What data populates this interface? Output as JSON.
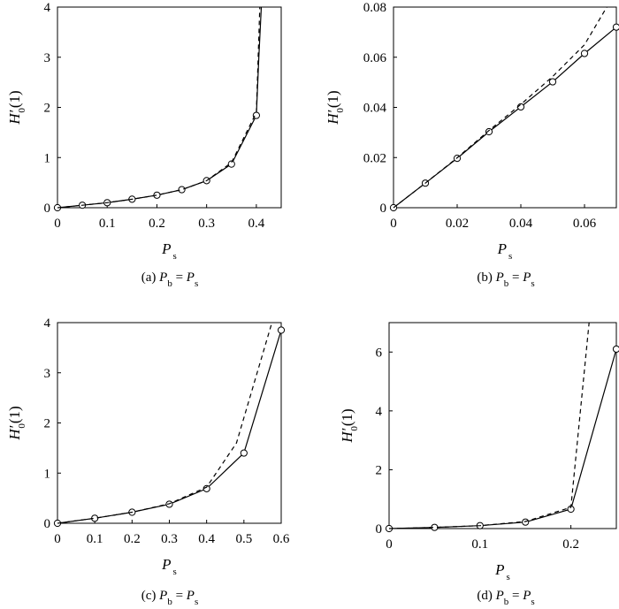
{
  "chart_data": [
    {
      "type": "line",
      "caption": {
        "prefix": "(a) ",
        "lhs_var": "P",
        "lhs_sub": "b",
        "eq": " = ",
        "rhs_var": "P",
        "rhs_sub": "s"
      },
      "xlabel": {
        "var": "P",
        "sub": "s"
      },
      "ylabel": {
        "var": "H",
        "sub": "0",
        "tail": "(1)"
      },
      "xlim": [
        0,
        0.45
      ],
      "ylim": [
        0,
        4
      ],
      "xticks": [
        0,
        0.1,
        0.2,
        0.3,
        0.4
      ],
      "xtick_labels": [
        "0",
        "0.1",
        "0.2",
        "0.3",
        "0.4"
      ],
      "yticks": [
        0,
        1,
        2,
        3,
        4
      ],
      "ytick_labels": [
        "0",
        "1",
        "2",
        "3",
        "4"
      ],
      "series": [
        {
          "style": "solid",
          "markers": true,
          "x": [
            0,
            0.05,
            0.1,
            0.15,
            0.2,
            0.25,
            0.3,
            0.35,
            0.4
          ],
          "y": [
            0,
            0.05,
            0.1,
            0.17,
            0.25,
            0.36,
            0.54,
            0.87,
            1.84
          ],
          "markers_x": [
            0,
            0.05,
            0.1,
            0.15,
            0.2,
            0.25,
            0.3,
            0.35,
            0.4
          ],
          "markers_y": [
            0,
            0.05,
            0.1,
            0.17,
            0.25,
            0.36,
            0.54,
            0.87,
            1.84
          ],
          "tail_x": [
            0.4,
            0.405,
            0.41
          ],
          "tail_y": [
            1.84,
            3.0,
            4.0
          ]
        },
        {
          "style": "dashed",
          "markers": false,
          "x": [
            0,
            0.05,
            0.1,
            0.15,
            0.2,
            0.25,
            0.3,
            0.35,
            0.4,
            0.407
          ],
          "y": [
            0,
            0.05,
            0.1,
            0.17,
            0.25,
            0.36,
            0.54,
            0.9,
            1.9,
            4.0
          ]
        }
      ]
    },
    {
      "type": "line",
      "caption": {
        "prefix": "(b) ",
        "lhs_var": "P",
        "lhs_sub": "b",
        "eq": " = ",
        "rhs_var": "P",
        "rhs_sub": "s"
      },
      "xlabel": {
        "var": "P",
        "sub": "s"
      },
      "ylabel": {
        "var": "H",
        "sub": "0",
        "tail": "(1)"
      },
      "xlim": [
        0,
        0.07
      ],
      "ylim": [
        0,
        0.08
      ],
      "xticks": [
        0,
        0.02,
        0.04,
        0.06
      ],
      "xtick_labels": [
        "0",
        "0.02",
        "0.04",
        "0.06"
      ],
      "yticks": [
        0,
        0.02,
        0.04,
        0.06,
        0.08
      ],
      "ytick_labels": [
        "0",
        "0.02",
        "0.04",
        "0.06",
        "0.08"
      ],
      "series": [
        {
          "style": "solid",
          "markers": true,
          "x": [
            0,
            0.01,
            0.02,
            0.03,
            0.04,
            0.05,
            0.06,
            0.07
          ],
          "y": [
            0,
            0.0098,
            0.0197,
            0.0303,
            0.0402,
            0.0502,
            0.0615,
            0.072
          ]
        },
        {
          "style": "dashed",
          "markers": false,
          "x": [
            0,
            0.01,
            0.02,
            0.03,
            0.04,
            0.05,
            0.06,
            0.067
          ],
          "y": [
            0,
            0.0098,
            0.0199,
            0.0308,
            0.0412,
            0.0523,
            0.065,
            0.08
          ]
        }
      ]
    },
    {
      "type": "line",
      "caption": {
        "prefix": "(c) ",
        "lhs_var": "P",
        "lhs_sub": "b",
        "eq": " = ",
        "rhs_var": "P",
        "rhs_sub": "s"
      },
      "xlabel": {
        "var": "P",
        "sub": "s"
      },
      "ylabel": {
        "var": "H",
        "sub": "0",
        "tail": "(1)"
      },
      "xlim": [
        0,
        0.6
      ],
      "ylim": [
        0,
        4
      ],
      "xticks": [
        0,
        0.1,
        0.2,
        0.3,
        0.4,
        0.5,
        0.6
      ],
      "xtick_labels": [
        "0",
        "0.1",
        "0.2",
        "0.3",
        "0.4",
        "0.5",
        "0.6"
      ],
      "yticks": [
        0,
        1,
        2,
        3,
        4
      ],
      "ytick_labels": [
        "0",
        "1",
        "2",
        "3",
        "4"
      ],
      "series": [
        {
          "style": "solid",
          "markers": true,
          "x": [
            0,
            0.1,
            0.2,
            0.3,
            0.4,
            0.5,
            0.6
          ],
          "y": [
            0,
            0.1,
            0.22,
            0.38,
            0.69,
            1.4,
            3.85
          ]
        },
        {
          "style": "dashed",
          "markers": false,
          "x": [
            0,
            0.1,
            0.2,
            0.3,
            0.4,
            0.48,
            0.575
          ],
          "y": [
            0,
            0.1,
            0.22,
            0.39,
            0.72,
            1.6,
            4.0
          ]
        }
      ]
    },
    {
      "type": "line",
      "caption": {
        "prefix": "(d) ",
        "lhs_var": "P",
        "lhs_sub": "b",
        "eq": " = ",
        "rhs_var": "P",
        "rhs_sub": "s"
      },
      "xlabel": {
        "var": "P",
        "sub": "s"
      },
      "ylabel": {
        "var": "H",
        "sub": "0",
        "tail": "(1)"
      },
      "xlim": [
        0,
        0.25
      ],
      "ylim": [
        0,
        7
      ],
      "xticks": [
        0,
        0.1,
        0.2
      ],
      "xtick_labels": [
        "0",
        "0.1",
        "0.2"
      ],
      "yticks": [
        0,
        2,
        4,
        6
      ],
      "ytick_labels": [
        "0",
        "2",
        "4",
        "6"
      ],
      "series": [
        {
          "style": "solid",
          "markers": true,
          "x": [
            0,
            0.05,
            0.1,
            0.15,
            0.2,
            0.25
          ],
          "y": [
            0,
            0.04,
            0.1,
            0.22,
            0.66,
            6.1
          ]
        },
        {
          "style": "dashed",
          "markers": false,
          "x": [
            0,
            0.05,
            0.1,
            0.15,
            0.2,
            0.22
          ],
          "y": [
            0,
            0.04,
            0.1,
            0.24,
            0.72,
            7.0
          ]
        }
      ]
    }
  ]
}
